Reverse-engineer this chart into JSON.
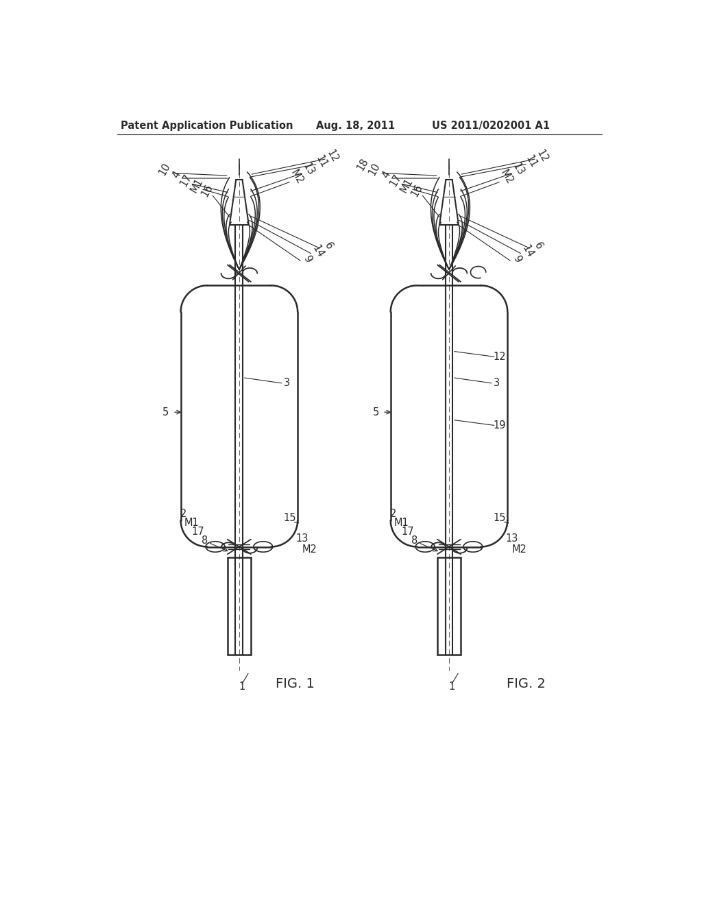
{
  "bg_color": "#ffffff",
  "header_left": "Patent Application Publication",
  "header_center": "Aug. 18, 2011",
  "header_right": "US 2011/0202001 A1",
  "fig1_label": "FIG. 1",
  "fig2_label": "FIG. 2",
  "line_color": "#2a2a2a",
  "text_color": "#2a2a2a"
}
